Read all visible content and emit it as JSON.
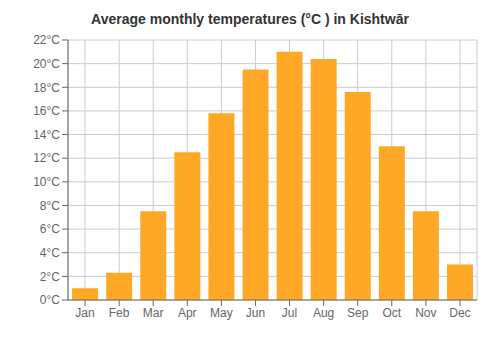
{
  "chart_data": {
    "type": "bar",
    "title": "Average monthly temperatures (°C ) in Kishtwār",
    "categories": [
      "Jan",
      "Feb",
      "Mar",
      "Apr",
      "May",
      "Jun",
      "Jul",
      "Aug",
      "Sep",
      "Oct",
      "Nov",
      "Dec"
    ],
    "values": [
      1.0,
      2.3,
      7.5,
      12.5,
      15.8,
      19.5,
      21.0,
      20.4,
      17.6,
      13.0,
      7.5,
      3.0
    ],
    "color": "#FFA726",
    "ylim": [
      0,
      22
    ],
    "yticks": [
      {
        "value": 0,
        "label": "0°C"
      },
      {
        "value": 2,
        "label": "2°C"
      },
      {
        "value": 4,
        "label": "4°C"
      },
      {
        "value": 6,
        "label": "6°C"
      },
      {
        "value": 8,
        "label": "8°C"
      },
      {
        "value": 10,
        "label": "10°C"
      },
      {
        "value": 12,
        "label": "12°C"
      },
      {
        "value": 14,
        "label": "14°C"
      },
      {
        "value": 16,
        "label": "16°C"
      },
      {
        "value": 18,
        "label": "18°C"
      },
      {
        "value": 20,
        "label": "20°C"
      },
      {
        "value": 22,
        "label": "22°C"
      }
    ],
    "grid": true
  }
}
